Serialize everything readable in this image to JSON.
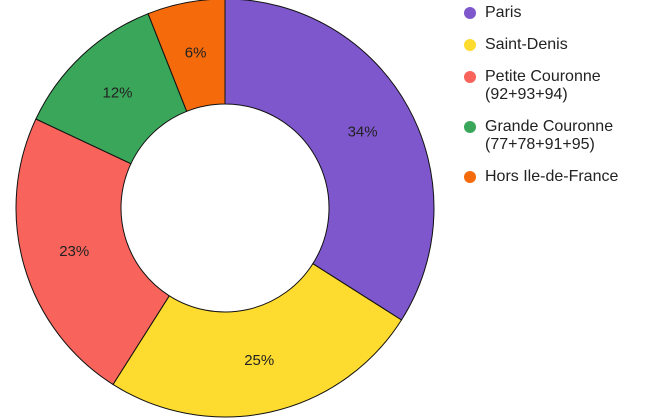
{
  "chart_data": {
    "type": "donut",
    "categories": [
      "Paris",
      "Saint-Denis",
      "Petite Couronne\n(92+93+94)",
      "Grande Couronne\n(77+78+91+95)",
      "Hors Ile-de-France"
    ],
    "values": [
      34,
      25,
      23,
      12,
      6
    ],
    "value_labels": [
      "34%",
      "25%",
      "23%",
      "12%",
      "6%"
    ],
    "colors": [
      "#7e57cd",
      "#fddb2f",
      "#f8645b",
      "#3aa65a",
      "#f56a0a"
    ],
    "legend": "right"
  }
}
